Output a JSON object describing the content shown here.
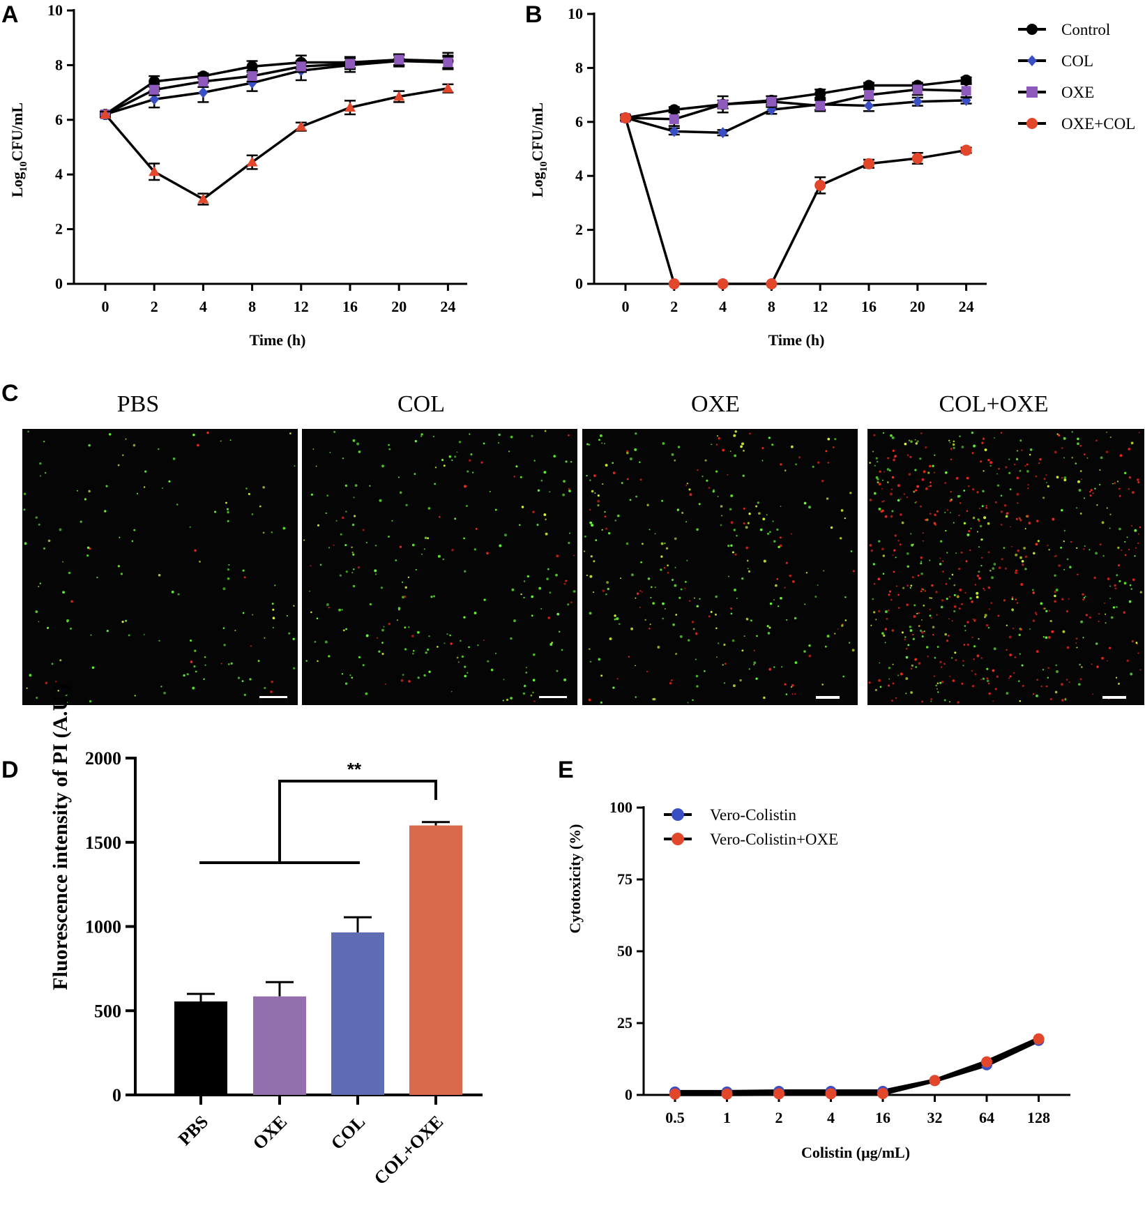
{
  "colors": {
    "control": "#000000",
    "col": "#3b4fc4",
    "oxe": "#8e5bbd",
    "combo": "#e2462b",
    "bar_pbs": "#000000",
    "bar_oxe": "#936fae",
    "bar_col": "#5e6cb4",
    "bar_combo": "#d8694a",
    "vero_col": "#3b4fc4",
    "vero_combo": "#e2462b",
    "live": "#66ff33",
    "dead": "#ff2a1a"
  },
  "chart_data": [
    {
      "panel": "A",
      "type": "line",
      "categories": [
        "0",
        "2",
        "4",
        "8",
        "12",
        "16",
        "20",
        "24"
      ],
      "xlabel": "Time (h)",
      "ylabel_main": "Log",
      "ylabel_sub": "10",
      "ylabel_rest": "CFU/mL",
      "ylim": [
        0,
        10
      ],
      "yticks": [
        0,
        2,
        4,
        6,
        8,
        10
      ],
      "series": [
        {
          "name": "Control",
          "values": [
            6.2,
            7.4,
            7.6,
            7.95,
            8.1,
            8.1,
            8.2,
            8.15
          ],
          "err": [
            0.1,
            0.2,
            0.1,
            0.2,
            0.25,
            0.2,
            0.2,
            0.3
          ]
        },
        {
          "name": "COL",
          "values": [
            6.2,
            6.75,
            7.0,
            7.35,
            7.8,
            8.0,
            8.15,
            8.1
          ],
          "err": [
            0.1,
            0.3,
            0.35,
            0.3,
            0.35,
            0.25,
            0.2,
            0.25
          ]
        },
        {
          "name": "OXE",
          "values": [
            6.2,
            7.1,
            7.4,
            7.6,
            7.95,
            8.05,
            8.2,
            8.1
          ],
          "err": [
            0.1,
            0.2,
            0.2,
            0.2,
            0.2,
            0.2,
            0.2,
            0.2
          ]
        },
        {
          "name": "OXE+COL",
          "values": [
            6.2,
            4.1,
            3.1,
            4.45,
            5.75,
            6.45,
            6.85,
            7.15
          ],
          "err": [
            0.1,
            0.3,
            0.2,
            0.25,
            0.15,
            0.25,
            0.2,
            0.15
          ]
        }
      ]
    },
    {
      "panel": "B",
      "type": "line",
      "categories": [
        "0",
        "2",
        "4",
        "8",
        "12",
        "16",
        "20",
        "24"
      ],
      "xlabel": "Time (h)",
      "ylabel_main": "Log",
      "ylabel_sub": "10",
      "ylabel_rest": "CFU/mL",
      "ylim": [
        0,
        10
      ],
      "yticks": [
        0,
        2,
        4,
        6,
        8,
        10
      ],
      "legend": [
        "Control",
        "COL",
        "OXE",
        "OXE+COL"
      ],
      "series": [
        {
          "name": "Control",
          "values": [
            6.15,
            6.45,
            6.65,
            6.8,
            7.05,
            7.35,
            7.35,
            7.55
          ],
          "err": [
            0.1,
            0.1,
            0.15,
            0.15,
            0.15,
            0.1,
            0.1,
            0.1
          ]
        },
        {
          "name": "COL",
          "values": [
            6.15,
            5.65,
            5.6,
            6.45,
            6.65,
            6.6,
            6.75,
            6.8
          ],
          "err": [
            0.1,
            0.12,
            0.1,
            0.15,
            0.2,
            0.2,
            0.15,
            0.12
          ]
        },
        {
          "name": "OXE",
          "values": [
            6.15,
            6.1,
            6.65,
            6.75,
            6.6,
            7.0,
            7.2,
            7.15
          ],
          "err": [
            0.1,
            0.25,
            0.3,
            0.2,
            0.2,
            0.2,
            0.2,
            0.25
          ]
        },
        {
          "name": "OXE+COL",
          "values": [
            6.15,
            0,
            0,
            0,
            3.65,
            4.45,
            4.65,
            4.95
          ],
          "err": [
            0.1,
            0,
            0,
            0,
            0.3,
            0.15,
            0.2,
            0.1
          ]
        }
      ]
    },
    {
      "panel": "D",
      "type": "bar",
      "categories": [
        "PBS",
        "OXE",
        "COL",
        "COL+OXE"
      ],
      "values": [
        555,
        585,
        965,
        1600
      ],
      "err": [
        45,
        85,
        90,
        20
      ],
      "ylabel": "Fluorescence intensity of PI (A.U.)",
      "ylim": [
        0,
        2000
      ],
      "yticks": [
        0,
        500,
        1000,
        1500,
        2000
      ],
      "annotation": "**"
    },
    {
      "panel": "E",
      "type": "line",
      "categories": [
        "0.5",
        "1",
        "2",
        "4",
        "16",
        "32",
        "64",
        "128"
      ],
      "xlabel": "Colistin (μg/mL)",
      "ylabel": "Cytotoxicity (%)",
      "ylim": [
        0,
        100
      ],
      "yticks": [
        0,
        25,
        50,
        75,
        100
      ],
      "legend": [
        "Vero-Colistin",
        "Vero-Colistin+OXE"
      ],
      "series": [
        {
          "name": "Vero-Colistin",
          "values": [
            1,
            1,
            1.2,
            1.2,
            1.2,
            5,
            10.5,
            19
          ]
        },
        {
          "name": "Vero-Colistin+OXE",
          "values": [
            0.3,
            0.3,
            0.4,
            0.4,
            0.5,
            5,
            11.5,
            19.5
          ]
        }
      ]
    }
  ],
  "panel_letters": [
    "A",
    "B",
    "C",
    "D",
    "E"
  ],
  "microscopy": {
    "titles": [
      "PBS",
      "COL",
      "OXE",
      "COL+OXE"
    ],
    "dead_fraction": [
      0.05,
      0.12,
      0.2,
      0.55
    ],
    "density": [
      0.35,
      0.6,
      1.0,
      2.2
    ]
  }
}
